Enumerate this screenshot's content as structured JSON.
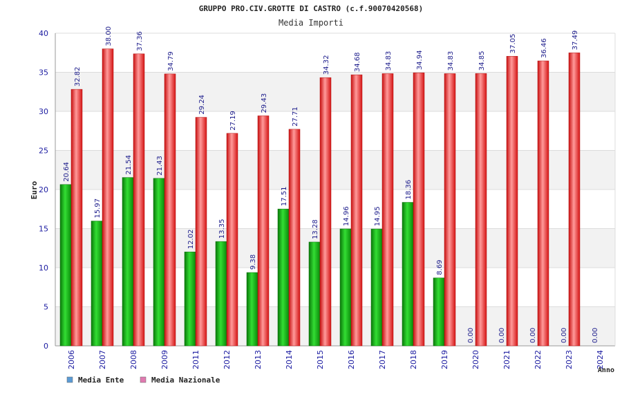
{
  "chart_data": {
    "type": "bar",
    "title": "GRUPPO PRO.CIV.GROTTE DI CASTRO (c.f.90070420568)",
    "subtitle": "Media Importi",
    "xlabel": "Anno",
    "ylabel": "Euro",
    "ylim": [
      0,
      40
    ],
    "yticks": [
      0,
      5,
      10,
      15,
      20,
      25,
      30,
      35,
      40
    ],
    "grid": true,
    "legend_position": "bottom-left",
    "categories": [
      "2006",
      "2007",
      "2008",
      "2009",
      "2011",
      "2012",
      "2013",
      "2014",
      "2015",
      "2016",
      "2017",
      "2018",
      "2019",
      "2020",
      "2021",
      "2022",
      "2023",
      "2024"
    ],
    "series": [
      {
        "name": "Media Ente",
        "legend_color": "#5b9bd5",
        "bar_color": "#11aa11",
        "values": [
          20.64,
          15.97,
          21.54,
          21.43,
          12.02,
          13.35,
          9.38,
          17.51,
          13.28,
          14.96,
          14.95,
          18.36,
          8.69,
          0,
          0,
          0,
          0,
          0
        ],
        "labels": [
          "20.64",
          "15.97",
          "21.54",
          "21.43",
          "12.02",
          "13.35",
          "9.38",
          "17.51",
          "13.28",
          "14.96",
          "14.95",
          "18.36",
          "8.69",
          "0.00",
          "0.00",
          "0.00",
          "0.00",
          "0.00"
        ]
      },
      {
        "name": "Media Nazionale",
        "legend_color": "#e07ab0",
        "bar_color": "#ee2222",
        "values": [
          32.82,
          38.0,
          37.36,
          34.79,
          29.24,
          27.19,
          29.43,
          27.71,
          34.32,
          34.68,
          34.83,
          34.94,
          34.83,
          34.85,
          37.05,
          36.46,
          37.49,
          null
        ],
        "labels": [
          "32.82",
          "38.00",
          "37.36",
          "34.79",
          "29.24",
          "27.19",
          "29.43",
          "27.71",
          "34.32",
          "34.68",
          "34.83",
          "34.94",
          "34.83",
          "34.85",
          "37.05",
          "36.46",
          "37.49",
          ""
        ]
      }
    ]
  }
}
